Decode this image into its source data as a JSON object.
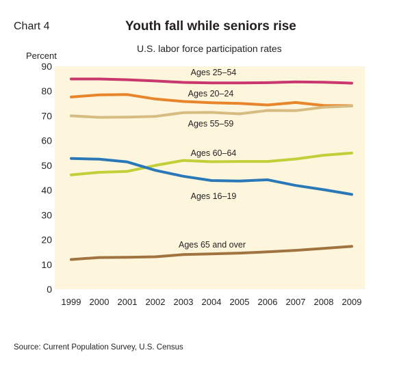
{
  "header": {
    "chart_number": "Chart 4",
    "title": "Youth fall while seniors rise",
    "subtitle": "U.S. labor force participation rates"
  },
  "footer": {
    "source": "Source: Current Population Survey, U.S. Census"
  },
  "chart_data": {
    "type": "line",
    "title": "Youth fall while seniors rise",
    "subtitle": "U.S. labor force participation rates",
    "ylabel": "Percent",
    "xlabel": "",
    "ylim": [
      0,
      90
    ],
    "yticks": [
      0,
      10,
      20,
      30,
      40,
      50,
      60,
      70,
      80,
      90
    ],
    "x": [
      "1999",
      "2000",
      "2001",
      "2002",
      "2003",
      "2004",
      "2005",
      "2006",
      "2007",
      "2008",
      "2009"
    ],
    "grid": false,
    "plot_background": "#fdf5dc",
    "series": [
      {
        "name": "Ages 25–54",
        "color": "#c8386e",
        "values": [
          84.9,
          84.9,
          84.6,
          84.1,
          83.5,
          83.3,
          83.3,
          83.4,
          83.7,
          83.6,
          83.2
        ]
      },
      {
        "name": "Ages 20–24",
        "color": "#e8852a",
        "values": [
          77.6,
          78.5,
          78.6,
          76.8,
          75.8,
          75.3,
          75.0,
          74.4,
          75.4,
          74.2,
          74.1
        ]
      },
      {
        "name": "Ages 55–59",
        "color": "#d6bb82",
        "values": [
          70.0,
          69.4,
          69.5,
          69.8,
          71.3,
          71.4,
          70.8,
          72.2,
          72.1,
          73.5,
          74.0
        ]
      },
      {
        "name": "Ages 60–64",
        "color": "#c3cf38",
        "values": [
          46.2,
          47.2,
          47.6,
          50.0,
          52.0,
          51.5,
          51.6,
          51.6,
          52.6,
          54.1,
          55.0
        ]
      },
      {
        "name": "Ages 16–19",
        "color": "#2b78b8",
        "values": [
          52.8,
          52.5,
          51.4,
          48.0,
          45.6,
          43.9,
          43.7,
          44.2,
          41.9,
          40.2,
          38.3
        ]
      },
      {
        "name": "Ages 65 and over",
        "color": "#a07440",
        "values": [
          12.0,
          12.8,
          12.9,
          13.1,
          14.0,
          14.3,
          14.6,
          15.1,
          15.7,
          16.5,
          17.3
        ]
      }
    ]
  }
}
